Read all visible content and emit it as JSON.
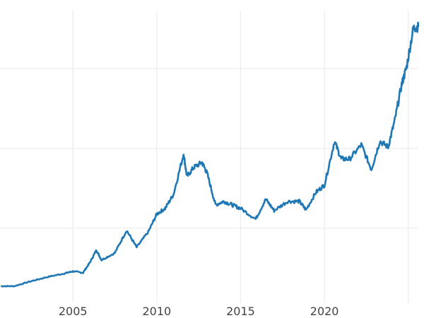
{
  "chart_data": {
    "type": "line",
    "title": "",
    "xlabel": "",
    "ylabel": "",
    "xlim": [
      2000.65,
      2025.6
    ],
    "ylim": [
      70,
      3725
    ],
    "grid": true,
    "x_ticks": [
      2005,
      2010,
      2015,
      2020
    ],
    "x_gridlines": [
      2005,
      2010,
      2015,
      2020,
      2025
    ],
    "y_gridlines": [
      1000,
      2000,
      3000
    ],
    "y_tick_labels_visible": false,
    "line_color": "#1f77b4",
    "grid_color": "#ebebeb",
    "series": [
      {
        "x": [
          2000.7,
          2001.5,
          2002.5,
          2003.5,
          2004.5,
          2005.0,
          2005.6,
          2006.0,
          2006.4,
          2006.7,
          2007.5,
          2008.2,
          2008.8,
          2009.5,
          2010.0,
          2010.5,
          2011.0,
          2011.6,
          2011.8,
          2012.2,
          2012.7,
          2013.0,
          2013.5,
          2014.0,
          2014.5,
          2015.0,
          2015.9,
          2016.5,
          2017.0,
          2017.8,
          2018.5,
          2018.9,
          2019.5,
          2020.0,
          2020.6,
          2021.0,
          2021.5,
          2022.2,
          2022.8,
          2023.3,
          2023.8,
          2024.2,
          2024.6,
          2024.9,
          2025.3,
          2025.6
        ],
        "y": [
          274,
          274,
          336,
          390,
          434,
          460,
          442,
          566,
          726,
          602,
          690,
          973,
          761,
          956,
          1177,
          1248,
          1425,
          1929,
          1646,
          1761,
          1823,
          1690,
          1292,
          1336,
          1292,
          1248,
          1115,
          1363,
          1221,
          1336,
          1336,
          1230,
          1451,
          1540,
          2088,
          1867,
          1867,
          2044,
          1735,
          2088,
          2018,
          2354,
          2796,
          3018,
          3504,
          3522
        ]
      }
    ]
  }
}
